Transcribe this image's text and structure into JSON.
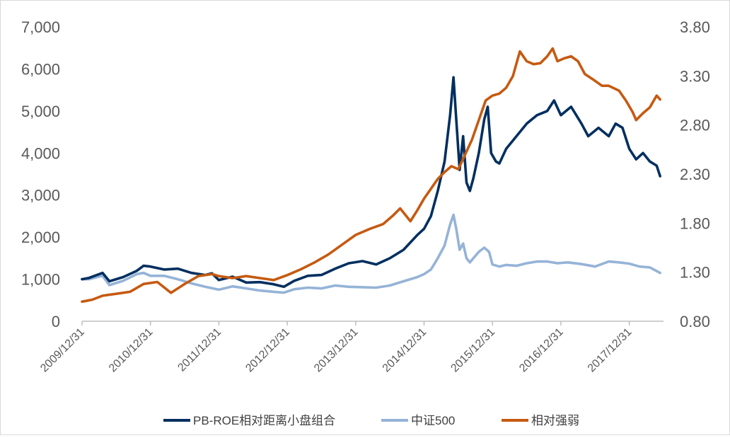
{
  "chart_data": {
    "type": "line",
    "title": "",
    "left_axis": {
      "min": 0,
      "max": 7000,
      "ticks": [
        "0",
        "1,000",
        "2,000",
        "3,000",
        "4,000",
        "5,000",
        "6,000",
        "7,000"
      ]
    },
    "right_axis": {
      "min": 0.8,
      "max": 3.8,
      "ticks": [
        "0.80",
        "1.30",
        "1.80",
        "2.30",
        "2.80",
        "3.30",
        "3.80"
      ]
    },
    "x_ticks": [
      "2009/12/31",
      "2010/12/31",
      "2011/12/31",
      "2012/12/31",
      "2013/12/31",
      "2014/12/31",
      "2015/12/31",
      "2016/12/31",
      "2017/12/31"
    ],
    "x_range": [
      2010.0,
      2018.5
    ],
    "legend_position": "bottom",
    "series": [
      {
        "name": "PB-ROE相对距离小盘组合",
        "axis": "left",
        "color": "#002f5f",
        "points": [
          [
            2010.0,
            1000
          ],
          [
            2010.1,
            1030
          ],
          [
            2010.3,
            1150
          ],
          [
            2010.4,
            950
          ],
          [
            2010.6,
            1050
          ],
          [
            2010.8,
            1200
          ],
          [
            2010.9,
            1320
          ],
          [
            2011.0,
            1300
          ],
          [
            2011.2,
            1230
          ],
          [
            2011.4,
            1250
          ],
          [
            2011.6,
            1150
          ],
          [
            2011.8,
            1100
          ],
          [
            2011.9,
            1140
          ],
          [
            2012.0,
            980
          ],
          [
            2012.2,
            1060
          ],
          [
            2012.4,
            920
          ],
          [
            2012.6,
            930
          ],
          [
            2012.8,
            880
          ],
          [
            2012.95,
            820
          ],
          [
            2013.1,
            960
          ],
          [
            2013.3,
            1080
          ],
          [
            2013.5,
            1100
          ],
          [
            2013.7,
            1250
          ],
          [
            2013.9,
            1380
          ],
          [
            2014.1,
            1430
          ],
          [
            2014.3,
            1350
          ],
          [
            2014.5,
            1500
          ],
          [
            2014.7,
            1700
          ],
          [
            2014.9,
            2050
          ],
          [
            2015.0,
            2200
          ],
          [
            2015.1,
            2500
          ],
          [
            2015.2,
            3100
          ],
          [
            2015.3,
            3800
          ],
          [
            2015.38,
            4900
          ],
          [
            2015.43,
            5800
          ],
          [
            2015.47,
            4800
          ],
          [
            2015.52,
            3600
          ],
          [
            2015.57,
            4400
          ],
          [
            2015.62,
            3300
          ],
          [
            2015.67,
            3100
          ],
          [
            2015.72,
            3400
          ],
          [
            2015.8,
            4000
          ],
          [
            2015.88,
            4800
          ],
          [
            2015.93,
            5100
          ],
          [
            2015.98,
            4000
          ],
          [
            2016.05,
            3800
          ],
          [
            2016.1,
            3750
          ],
          [
            2016.2,
            4100
          ],
          [
            2016.35,
            4400
          ],
          [
            2016.5,
            4700
          ],
          [
            2016.65,
            4900
          ],
          [
            2016.8,
            5000
          ],
          [
            2016.9,
            5250
          ],
          [
            2017.0,
            4900
          ],
          [
            2017.15,
            5100
          ],
          [
            2017.3,
            4700
          ],
          [
            2017.4,
            4400
          ],
          [
            2017.55,
            4600
          ],
          [
            2017.7,
            4400
          ],
          [
            2017.8,
            4700
          ],
          [
            2017.9,
            4600
          ],
          [
            2018.0,
            4100
          ],
          [
            2018.1,
            3850
          ],
          [
            2018.2,
            4000
          ],
          [
            2018.3,
            3800
          ],
          [
            2018.4,
            3700
          ],
          [
            2018.45,
            3450
          ]
        ]
      },
      {
        "name": "中证500",
        "axis": "left",
        "color": "#95b3d7",
        "points": [
          [
            2010.0,
            1000
          ],
          [
            2010.1,
            1000
          ],
          [
            2010.3,
            1080
          ],
          [
            2010.4,
            860
          ],
          [
            2010.6,
            960
          ],
          [
            2010.8,
            1120
          ],
          [
            2010.9,
            1150
          ],
          [
            2011.0,
            1080
          ],
          [
            2011.2,
            1080
          ],
          [
            2011.4,
            1000
          ],
          [
            2011.6,
            900
          ],
          [
            2011.8,
            820
          ],
          [
            2012.0,
            750
          ],
          [
            2012.2,
            830
          ],
          [
            2012.4,
            780
          ],
          [
            2012.6,
            730
          ],
          [
            2012.8,
            700
          ],
          [
            2012.95,
            680
          ],
          [
            2013.1,
            760
          ],
          [
            2013.3,
            800
          ],
          [
            2013.5,
            780
          ],
          [
            2013.7,
            850
          ],
          [
            2013.9,
            820
          ],
          [
            2014.1,
            810
          ],
          [
            2014.3,
            800
          ],
          [
            2014.5,
            850
          ],
          [
            2014.7,
            950
          ],
          [
            2014.9,
            1050
          ],
          [
            2015.0,
            1120
          ],
          [
            2015.1,
            1230
          ],
          [
            2015.2,
            1500
          ],
          [
            2015.3,
            1800
          ],
          [
            2015.38,
            2300
          ],
          [
            2015.43,
            2530
          ],
          [
            2015.47,
            2200
          ],
          [
            2015.52,
            1700
          ],
          [
            2015.57,
            1850
          ],
          [
            2015.62,
            1500
          ],
          [
            2015.67,
            1400
          ],
          [
            2015.72,
            1500
          ],
          [
            2015.8,
            1650
          ],
          [
            2015.88,
            1750
          ],
          [
            2015.95,
            1650
          ],
          [
            2016.0,
            1350
          ],
          [
            2016.1,
            1300
          ],
          [
            2016.2,
            1340
          ],
          [
            2016.35,
            1320
          ],
          [
            2016.5,
            1380
          ],
          [
            2016.65,
            1420
          ],
          [
            2016.8,
            1420
          ],
          [
            2016.95,
            1380
          ],
          [
            2017.1,
            1400
          ],
          [
            2017.3,
            1360
          ],
          [
            2017.5,
            1300
          ],
          [
            2017.7,
            1420
          ],
          [
            2017.85,
            1400
          ],
          [
            2018.0,
            1370
          ],
          [
            2018.15,
            1300
          ],
          [
            2018.3,
            1280
          ],
          [
            2018.45,
            1150
          ]
        ]
      },
      {
        "name": "相对强弱",
        "axis": "right",
        "color": "#c55a11",
        "points": [
          [
            2010.0,
            1.0
          ],
          [
            2010.15,
            1.02
          ],
          [
            2010.3,
            1.06
          ],
          [
            2010.5,
            1.08
          ],
          [
            2010.7,
            1.1
          ],
          [
            2010.9,
            1.18
          ],
          [
            2011.1,
            1.2
          ],
          [
            2011.3,
            1.09
          ],
          [
            2011.5,
            1.18
          ],
          [
            2011.7,
            1.26
          ],
          [
            2011.9,
            1.28
          ],
          [
            2012.0,
            1.26
          ],
          [
            2012.2,
            1.24
          ],
          [
            2012.4,
            1.26
          ],
          [
            2012.6,
            1.24
          ],
          [
            2012.8,
            1.22
          ],
          [
            2013.0,
            1.27
          ],
          [
            2013.2,
            1.33
          ],
          [
            2013.4,
            1.4
          ],
          [
            2013.6,
            1.48
          ],
          [
            2013.8,
            1.58
          ],
          [
            2014.0,
            1.68
          ],
          [
            2014.2,
            1.74
          ],
          [
            2014.4,
            1.79
          ],
          [
            2014.55,
            1.88
          ],
          [
            2014.65,
            1.95
          ],
          [
            2014.8,
            1.82
          ],
          [
            2014.9,
            1.93
          ],
          [
            2015.0,
            2.05
          ],
          [
            2015.1,
            2.15
          ],
          [
            2015.2,
            2.25
          ],
          [
            2015.3,
            2.32
          ],
          [
            2015.4,
            2.38
          ],
          [
            2015.5,
            2.35
          ],
          [
            2015.6,
            2.5
          ],
          [
            2015.7,
            2.65
          ],
          [
            2015.8,
            2.85
          ],
          [
            2015.9,
            3.05
          ],
          [
            2016.0,
            3.1
          ],
          [
            2016.1,
            3.12
          ],
          [
            2016.2,
            3.18
          ],
          [
            2016.3,
            3.3
          ],
          [
            2016.4,
            3.55
          ],
          [
            2016.5,
            3.45
          ],
          [
            2016.6,
            3.42
          ],
          [
            2016.7,
            3.43
          ],
          [
            2016.8,
            3.5
          ],
          [
            2016.88,
            3.58
          ],
          [
            2016.95,
            3.45
          ],
          [
            2017.05,
            3.48
          ],
          [
            2017.15,
            3.5
          ],
          [
            2017.25,
            3.45
          ],
          [
            2017.35,
            3.32
          ],
          [
            2017.5,
            3.25
          ],
          [
            2017.6,
            3.2
          ],
          [
            2017.7,
            3.2
          ],
          [
            2017.85,
            3.15
          ],
          [
            2017.95,
            3.05
          ],
          [
            2018.05,
            2.93
          ],
          [
            2018.1,
            2.85
          ],
          [
            2018.2,
            2.92
          ],
          [
            2018.3,
            2.98
          ],
          [
            2018.4,
            3.1
          ],
          [
            2018.45,
            3.06
          ]
        ]
      }
    ]
  }
}
